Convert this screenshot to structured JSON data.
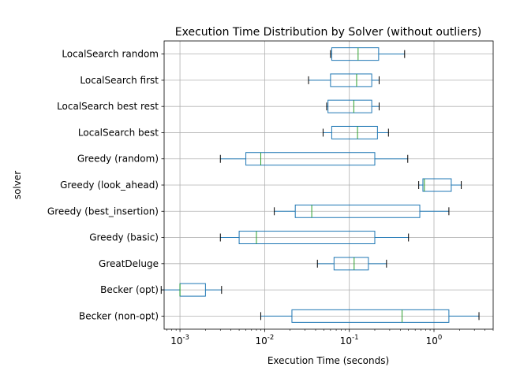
{
  "chart_data": {
    "type": "boxplot",
    "orientation": "horizontal",
    "title": "Execution Time Distribution by Solver (without outliers)",
    "xlabel": "Execution Time (seconds)",
    "ylabel": "solver",
    "x_scale": "log",
    "xlim": [
      0.00065,
      5.0
    ],
    "x_tick_labels": [
      "10^-3",
      "10^-2",
      "10^-1",
      "10^0"
    ],
    "grid": true,
    "showfliers": false,
    "colors": {
      "box": "#1f77b4",
      "median": "#2ca02c",
      "whisker": "#1f77b4",
      "cap": "#000000",
      "grid": "#b0b0b0"
    },
    "categories": [
      "Becker (non-opt)",
      "Becker (opt)",
      "GreatDeluge",
      "Greedy (basic)",
      "Greedy (best_insertion)",
      "Greedy (look_ahead)",
      "Greedy (random)",
      "LocalSearch best",
      "LocalSearch best rest",
      "LocalSearch first",
      "LocalSearch random"
    ],
    "series": [
      {
        "whisker_low": 0.009,
        "q1": 0.021,
        "median": 0.42,
        "q3": 1.5,
        "whisker_high": 3.4
      },
      {
        "whisker_low": 0.0006,
        "q1": 0.001,
        "median": 0.001,
        "q3": 0.002,
        "whisker_high": 0.0031
      },
      {
        "whisker_low": 0.042,
        "q1": 0.066,
        "median": 0.114,
        "q3": 0.168,
        "whisker_high": 0.275
      },
      {
        "whisker_low": 0.003,
        "q1": 0.005,
        "median": 0.008,
        "q3": 0.2,
        "whisker_high": 0.5
      },
      {
        "whisker_low": 0.013,
        "q1": 0.023,
        "median": 0.036,
        "q3": 0.68,
        "whisker_high": 1.5
      },
      {
        "whisker_low": 0.66,
        "q1": 0.74,
        "median": 0.77,
        "q3": 1.6,
        "whisker_high": 2.1
      },
      {
        "whisker_low": 0.003,
        "q1": 0.006,
        "median": 0.009,
        "q3": 0.2,
        "whisker_high": 0.49
      },
      {
        "whisker_low": 0.049,
        "q1": 0.062,
        "median": 0.125,
        "q3": 0.215,
        "whisker_high": 0.29
      },
      {
        "whisker_low": 0.054,
        "q1": 0.056,
        "median": 0.113,
        "q3": 0.184,
        "whisker_high": 0.225
      },
      {
        "whisker_low": 0.033,
        "q1": 0.06,
        "median": 0.122,
        "q3": 0.184,
        "whisker_high": 0.225
      },
      {
        "whisker_low": 0.06,
        "q1": 0.062,
        "median": 0.127,
        "q3": 0.222,
        "whisker_high": 0.45
      }
    ]
  }
}
